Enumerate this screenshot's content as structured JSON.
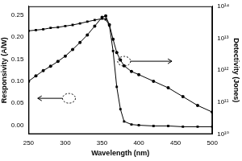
{
  "chart_data": {
    "type": "line",
    "x_label": "Wavelength (nm)",
    "y_label": "Responsivity (A/W)",
    "y2_label": "Detectivity (Jones)",
    "x": [
      250,
      260,
      270,
      280,
      290,
      300,
      310,
      320,
      330,
      340,
      350,
      355,
      360,
      365,
      370,
      375,
      380,
      390,
      400,
      420,
      440,
      460,
      480,
      500
    ],
    "series": [
      {
        "color": "#000000",
        "marker": "circle",
        "line_style": "solid",
        "axis": "y",
        "values": [
          0.1,
          0.112,
          0.124,
          0.134,
          0.145,
          0.157,
          0.172,
          0.188,
          0.205,
          0.225,
          0.245,
          0.248,
          0.228,
          0.195,
          0.165,
          0.148,
          0.135,
          0.122,
          0.115,
          0.1,
          0.085,
          0.065,
          0.045,
          0.03
        ]
      },
      {
        "color": "#000000",
        "marker": "square",
        "line_style": "solid",
        "axis": "y2",
        "values": [
          17000000000000.0,
          18000000000000.0,
          19000000000000.0,
          21000000000000.0,
          22000000000000.0,
          24000000000000.0,
          26000000000000.0,
          29000000000000.0,
          33000000000000.0,
          37000000000000.0,
          41000000000000.0,
          39000000000000.0,
          25000000000000.0,
          4000000000000.0,
          300000000000.0,
          60000000000.0,
          25000000000.0,
          20000000000.0,
          19000000000.0,
          18000000000.0,
          18000000000.0,
          17000000000.0,
          17000000000.0,
          17000000000.0
        ]
      }
    ],
    "xlim": [
      250,
      500
    ],
    "xticks": [
      250,
      300,
      350,
      400,
      450,
      500
    ],
    "ylim": [
      -0.02,
      0.27
    ],
    "yticks": [
      {
        "value": 0,
        "label": "0.00"
      },
      0.05,
      {
        "value": 0.1,
        "label": "0.10"
      },
      0.15,
      {
        "value": 0.2,
        "label": "0.20"
      },
      0.25
    ],
    "y2lim": [
      10000000000.0,
      100000000000000.0
    ],
    "y2ticks": [
      {
        "value": 10000000000.0,
        "label": "10¹⁰"
      },
      {
        "value": 100000000000.0,
        "label": "10¹¹"
      },
      {
        "value": 1000000000000.0,
        "label": "10¹²"
      },
      {
        "value": 10000000000000.0,
        "label": "10¹³"
      },
      {
        "value": 100000000000000.0,
        "label": "10¹⁴"
      }
    ],
    "log": "y2",
    "grid": false,
    "legend": "none"
  }
}
